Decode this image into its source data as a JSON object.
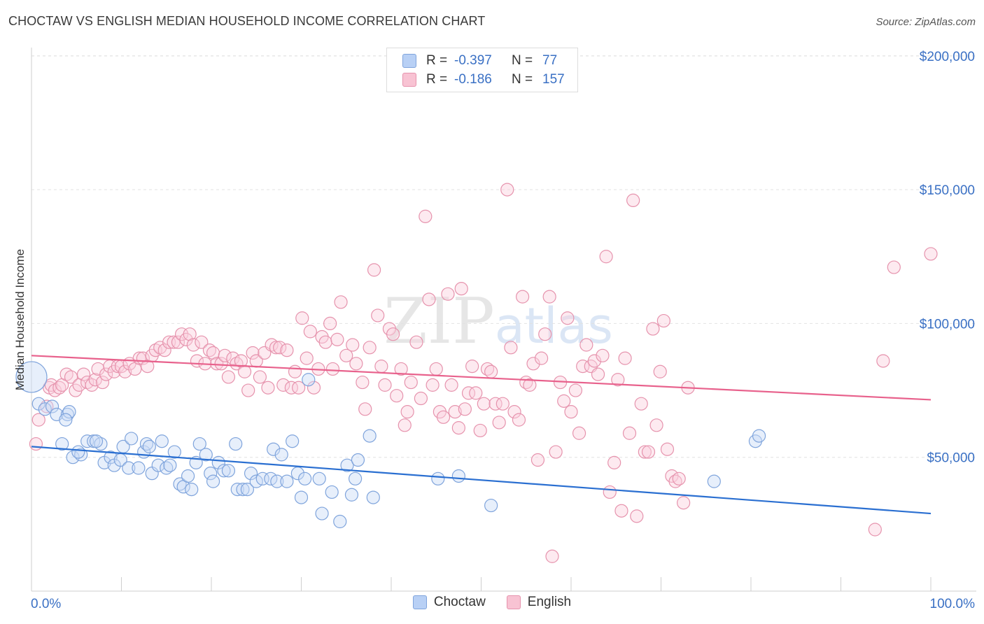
{
  "title": "CHOCTAW VS ENGLISH MEDIAN HOUSEHOLD INCOME CORRELATION CHART",
  "source": "Source: ZipAtlas.com",
  "watermark": "ZIPatlas",
  "stats": {
    "rows": [
      {
        "r_label": "R =",
        "r": "-0.397",
        "n_label": "N =",
        "n": "77",
        "color": "#b8d0f5"
      },
      {
        "r_label": "R =",
        "r": "-0.186",
        "n_label": "N =",
        "n": "157",
        "color": "#f8c3d3"
      }
    ]
  },
  "legend": [
    {
      "label": "Choctaw",
      "color": "#b8d0f5"
    },
    {
      "label": "English",
      "color": "#f8c3d3"
    }
  ],
  "colors": {
    "choctaw_point": "#7fa4dc",
    "english_point": "#e693ad",
    "choctaw_line": "#2a6fd1",
    "english_line": "#e8618c",
    "tick_label": "#3a70c4"
  },
  "chart_data": {
    "type": "scatter",
    "xlabel": "",
    "ylabel": "Median Household Income",
    "x_tick_labels": [
      "0.0%",
      "100.0%"
    ],
    "y_tick_labels": [
      "$50,000",
      "$100,000",
      "$150,000",
      "$200,000"
    ],
    "y_ticks": [
      50000,
      100000,
      150000,
      200000
    ],
    "xlim": [
      0,
      100
    ],
    "ylim": [
      0,
      205000
    ],
    "grid": true,
    "legend_placement": "bottom",
    "series": [
      {
        "name": "Choctaw",
        "trend": {
          "x": [
            0,
            100
          ],
          "y": [
            54000,
            29000
          ]
        },
        "points": [
          [
            0.0,
            80000
          ],
          [
            0.8,
            70000
          ],
          [
            1.5,
            68000
          ],
          [
            2.3,
            69000
          ],
          [
            2.8,
            66000
          ],
          [
            4.0,
            66000
          ],
          [
            4.2,
            67000
          ],
          [
            3.8,
            64000
          ],
          [
            3.4,
            55000
          ],
          [
            4.6,
            50000
          ],
          [
            5.5,
            51000
          ],
          [
            5.2,
            52000
          ],
          [
            6.2,
            56000
          ],
          [
            6.9,
            56000
          ],
          [
            7.7,
            55000
          ],
          [
            7.2,
            56000
          ],
          [
            8.1,
            48000
          ],
          [
            8.8,
            50000
          ],
          [
            9.2,
            47000
          ],
          [
            9.9,
            49000
          ],
          [
            10.2,
            54000
          ],
          [
            10.8,
            46000
          ],
          [
            11.1,
            57000
          ],
          [
            11.9,
            46000
          ],
          [
            12.5,
            52000
          ],
          [
            12.8,
            55000
          ],
          [
            13.1,
            54000
          ],
          [
            13.4,
            44000
          ],
          [
            14.1,
            47000
          ],
          [
            14.5,
            56000
          ],
          [
            15.0,
            46000
          ],
          [
            15.4,
            47000
          ],
          [
            15.9,
            52000
          ],
          [
            16.5,
            40000
          ],
          [
            16.9,
            39000
          ],
          [
            17.4,
            43000
          ],
          [
            17.8,
            38000
          ],
          [
            18.3,
            48000
          ],
          [
            18.7,
            55000
          ],
          [
            19.4,
            51000
          ],
          [
            19.9,
            44000
          ],
          [
            20.2,
            41000
          ],
          [
            20.8,
            48000
          ],
          [
            21.4,
            45000
          ],
          [
            21.9,
            45000
          ],
          [
            22.7,
            55000
          ],
          [
            22.9,
            38000
          ],
          [
            23.5,
            38000
          ],
          [
            24.0,
            38000
          ],
          [
            24.4,
            44000
          ],
          [
            25.0,
            41000
          ],
          [
            25.7,
            42000
          ],
          [
            26.6,
            42000
          ],
          [
            26.9,
            53000
          ],
          [
            27.3,
            41000
          ],
          [
            27.8,
            51000
          ],
          [
            28.4,
            41000
          ],
          [
            29.0,
            56000
          ],
          [
            29.6,
            44000
          ],
          [
            30.0,
            35000
          ],
          [
            30.4,
            42000
          ],
          [
            30.8,
            79000
          ],
          [
            32.0,
            42000
          ],
          [
            32.3,
            29000
          ],
          [
            33.4,
            37000
          ],
          [
            34.3,
            26000
          ],
          [
            35.1,
            47000
          ],
          [
            35.6,
            36000
          ],
          [
            36.0,
            42000
          ],
          [
            36.3,
            49000
          ],
          [
            37.6,
            58000
          ],
          [
            38.0,
            35000
          ],
          [
            45.2,
            42000
          ],
          [
            47.5,
            43000
          ],
          [
            51.1,
            32000
          ],
          [
            75.9,
            41000
          ],
          [
            80.5,
            56000
          ],
          [
            80.9,
            58000
          ]
        ]
      },
      {
        "name": "English",
        "trend": {
          "x": [
            0,
            100
          ],
          "y": [
            88000,
            71500
          ]
        },
        "points": [
          [
            0.5,
            55000
          ],
          [
            0.8,
            64000
          ],
          [
            1.7,
            69000
          ],
          [
            2.0,
            76000
          ],
          [
            2.2,
            77000
          ],
          [
            2.6,
            75000
          ],
          [
            3.1,
            76000
          ],
          [
            3.4,
            77000
          ],
          [
            3.9,
            81000
          ],
          [
            4.4,
            80000
          ],
          [
            4.9,
            75000
          ],
          [
            5.3,
            77000
          ],
          [
            5.8,
            81000
          ],
          [
            6.2,
            78000
          ],
          [
            6.7,
            77000
          ],
          [
            7.1,
            79000
          ],
          [
            7.4,
            83000
          ],
          [
            7.9,
            78000
          ],
          [
            8.3,
            81000
          ],
          [
            8.7,
            84000
          ],
          [
            9.2,
            82000
          ],
          [
            9.6,
            84000
          ],
          [
            10.0,
            84000
          ],
          [
            10.4,
            82000
          ],
          [
            10.9,
            85000
          ],
          [
            11.5,
            83000
          ],
          [
            12.0,
            87000
          ],
          [
            12.4,
            87000
          ],
          [
            12.9,
            84000
          ],
          [
            13.4,
            88000
          ],
          [
            13.8,
            90000
          ],
          [
            14.3,
            91000
          ],
          [
            14.8,
            90000
          ],
          [
            15.3,
            93000
          ],
          [
            15.8,
            93000
          ],
          [
            16.3,
            93000
          ],
          [
            16.7,
            96000
          ],
          [
            17.2,
            94000
          ],
          [
            17.6,
            96000
          ],
          [
            18.0,
            92000
          ],
          [
            18.4,
            86000
          ],
          [
            18.9,
            93000
          ],
          [
            19.3,
            85000
          ],
          [
            19.8,
            90000
          ],
          [
            20.2,
            89000
          ],
          [
            20.6,
            85000
          ],
          [
            21.1,
            85000
          ],
          [
            21.5,
            88000
          ],
          [
            21.9,
            80000
          ],
          [
            22.4,
            87000
          ],
          [
            22.8,
            85000
          ],
          [
            23.3,
            86000
          ],
          [
            23.7,
            82000
          ],
          [
            24.1,
            75000
          ],
          [
            24.6,
            89000
          ],
          [
            25.0,
            86000
          ],
          [
            25.4,
            80000
          ],
          [
            25.9,
            89000
          ],
          [
            26.3,
            76000
          ],
          [
            26.7,
            92000
          ],
          [
            27.2,
            91000
          ],
          [
            27.6,
            91000
          ],
          [
            28.0,
            77000
          ],
          [
            28.4,
            90000
          ],
          [
            28.9,
            76000
          ],
          [
            29.3,
            82000
          ],
          [
            29.7,
            76000
          ],
          [
            30.1,
            102000
          ],
          [
            30.6,
            87000
          ],
          [
            31.0,
            97000
          ],
          [
            31.4,
            76000
          ],
          [
            31.9,
            83000
          ],
          [
            32.3,
            95000
          ],
          [
            32.7,
            93000
          ],
          [
            33.2,
            100000
          ],
          [
            33.5,
            83000
          ],
          [
            34.0,
            94000
          ],
          [
            34.4,
            108000
          ],
          [
            35.0,
            88000
          ],
          [
            35.7,
            92000
          ],
          [
            36.1,
            85000
          ],
          [
            36.8,
            78000
          ],
          [
            37.1,
            68000
          ],
          [
            37.6,
            91000
          ],
          [
            38.1,
            120000
          ],
          [
            38.5,
            103000
          ],
          [
            38.9,
            84000
          ],
          [
            39.3,
            77000
          ],
          [
            39.8,
            98000
          ],
          [
            40.2,
            96000
          ],
          [
            40.6,
            73000
          ],
          [
            41.1,
            83000
          ],
          [
            41.5,
            62000
          ],
          [
            41.8,
            67000
          ],
          [
            42.2,
            78000
          ],
          [
            42.8,
            93000
          ],
          [
            43.3,
            72000
          ],
          [
            43.8,
            140000
          ],
          [
            44.2,
            109000
          ],
          [
            44.6,
            77000
          ],
          [
            45.0,
            83000
          ],
          [
            45.4,
            67000
          ],
          [
            45.8,
            65000
          ],
          [
            46.3,
            111000
          ],
          [
            46.7,
            77000
          ],
          [
            47.1,
            67000
          ],
          [
            47.5,
            61000
          ],
          [
            47.8,
            113000
          ],
          [
            48.2,
            68000
          ],
          [
            48.6,
            74000
          ],
          [
            49.0,
            84000
          ],
          [
            49.4,
            74000
          ],
          [
            49.9,
            60000
          ],
          [
            50.3,
            70000
          ],
          [
            50.7,
            83000
          ],
          [
            51.1,
            82000
          ],
          [
            51.6,
            70000
          ],
          [
            52.0,
            63000
          ],
          [
            52.4,
            70000
          ],
          [
            52.9,
            150000
          ],
          [
            53.3,
            91000
          ],
          [
            53.7,
            67000
          ],
          [
            54.2,
            64000
          ],
          [
            54.6,
            110000
          ],
          [
            55.0,
            78000
          ],
          [
            55.4,
            77000
          ],
          [
            55.8,
            85000
          ],
          [
            56.3,
            49000
          ],
          [
            56.7,
            87000
          ],
          [
            57.1,
            96000
          ],
          [
            57.6,
            110000
          ],
          [
            57.9,
            13000
          ],
          [
            58.3,
            52000
          ],
          [
            58.8,
            78000
          ],
          [
            59.2,
            71000
          ],
          [
            59.6,
            102000
          ],
          [
            60.0,
            67000
          ],
          [
            60.5,
            75000
          ],
          [
            60.9,
            59000
          ],
          [
            61.3,
            84000
          ],
          [
            61.7,
            92000
          ],
          [
            62.2,
            84000
          ],
          [
            62.6,
            86000
          ],
          [
            63.0,
            81000
          ],
          [
            63.5,
            88000
          ],
          [
            63.9,
            125000
          ],
          [
            64.3,
            37000
          ],
          [
            64.8,
            48000
          ],
          [
            65.2,
            79000
          ],
          [
            65.6,
            30000
          ],
          [
            66.0,
            87000
          ],
          [
            66.5,
            59000
          ],
          [
            66.9,
            146000
          ],
          [
            67.3,
            28000
          ],
          [
            67.8,
            70000
          ],
          [
            68.2,
            52000
          ],
          [
            68.6,
            52000
          ],
          [
            69.1,
            98000
          ],
          [
            69.5,
            62000
          ],
          [
            69.9,
            82000
          ],
          [
            70.3,
            101000
          ],
          [
            70.7,
            53000
          ],
          [
            71.2,
            43000
          ],
          [
            71.6,
            41000
          ],
          [
            72.0,
            42000
          ],
          [
            72.5,
            33000
          ],
          [
            73.0,
            76000
          ],
          [
            93.8,
            23000
          ],
          [
            94.7,
            86000
          ],
          [
            95.9,
            121000
          ],
          [
            100.0,
            126000
          ]
        ]
      }
    ]
  }
}
